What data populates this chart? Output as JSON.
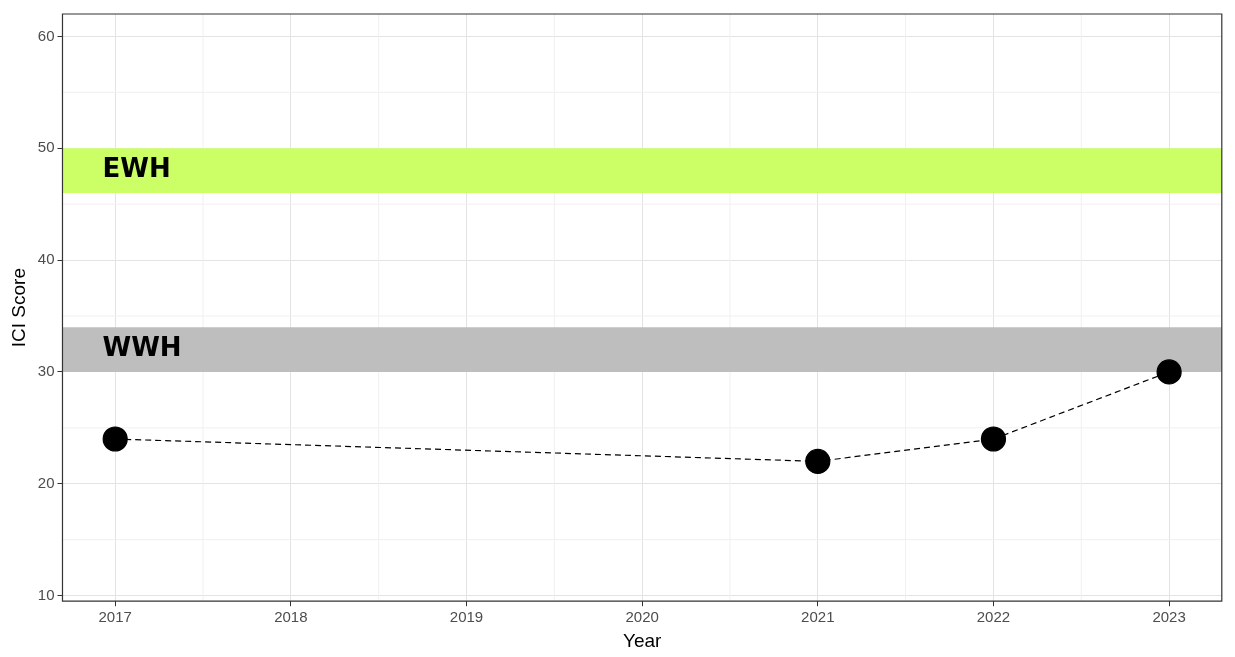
{
  "chart_data": {
    "type": "line",
    "xlabel": "Year",
    "ylabel": "ICI Score",
    "x": [
      2017,
      2021,
      2022,
      2023
    ],
    "series": [
      {
        "color": "#000000",
        "values": [
          24,
          22,
          24,
          30
        ]
      }
    ],
    "xlim": [
      2016.7,
      2023.3
    ],
    "xticks": [
      2017,
      2018,
      2019,
      2020,
      2021,
      2022,
      2023
    ],
    "ylim": [
      9.5,
      62
    ],
    "yticks": [
      10,
      20,
      30,
      40,
      50,
      60
    ],
    "bands": [
      {
        "axis": "y",
        "from": 46,
        "to": 50,
        "label": "EWH",
        "color": "#ccff66"
      },
      {
        "axis": "y",
        "from": 30,
        "to": 34,
        "label": "WWH",
        "color": "#bebebe"
      }
    ],
    "grid": true,
    "legend": false,
    "marker": "circle",
    "line_style": "dashed"
  }
}
